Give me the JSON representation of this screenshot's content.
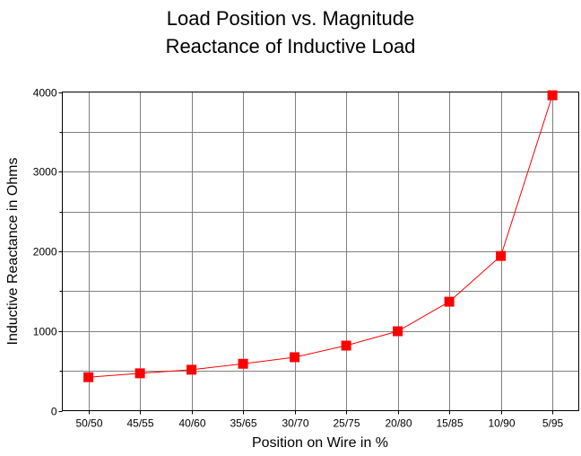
{
  "chart_data": {
    "type": "line",
    "title": [
      "Load Position vs. Magnitude",
      "Reactance of Inductive Load"
    ],
    "xlabel": "Position on Wire in %",
    "ylabel": "Inductive Reactance in Ohms",
    "categories": [
      "50/50",
      "45/55",
      "40/60",
      "35/65",
      "30/70",
      "25/75",
      "20/80",
      "15/85",
      "10/90",
      "5/95"
    ],
    "series": [
      {
        "name": "Reactance",
        "values": [
          420,
          469,
          514,
          589,
          671,
          817,
          997,
          1368,
          1942,
          3959
        ],
        "color": "#ff0000"
      }
    ],
    "ylim": [
      0,
      4000
    ],
    "yticks": [
      "0",
      "1000",
      "2000",
      "3000",
      "4000"
    ],
    "grid_step": 500,
    "grid": true,
    "grid_color": "#808080"
  }
}
